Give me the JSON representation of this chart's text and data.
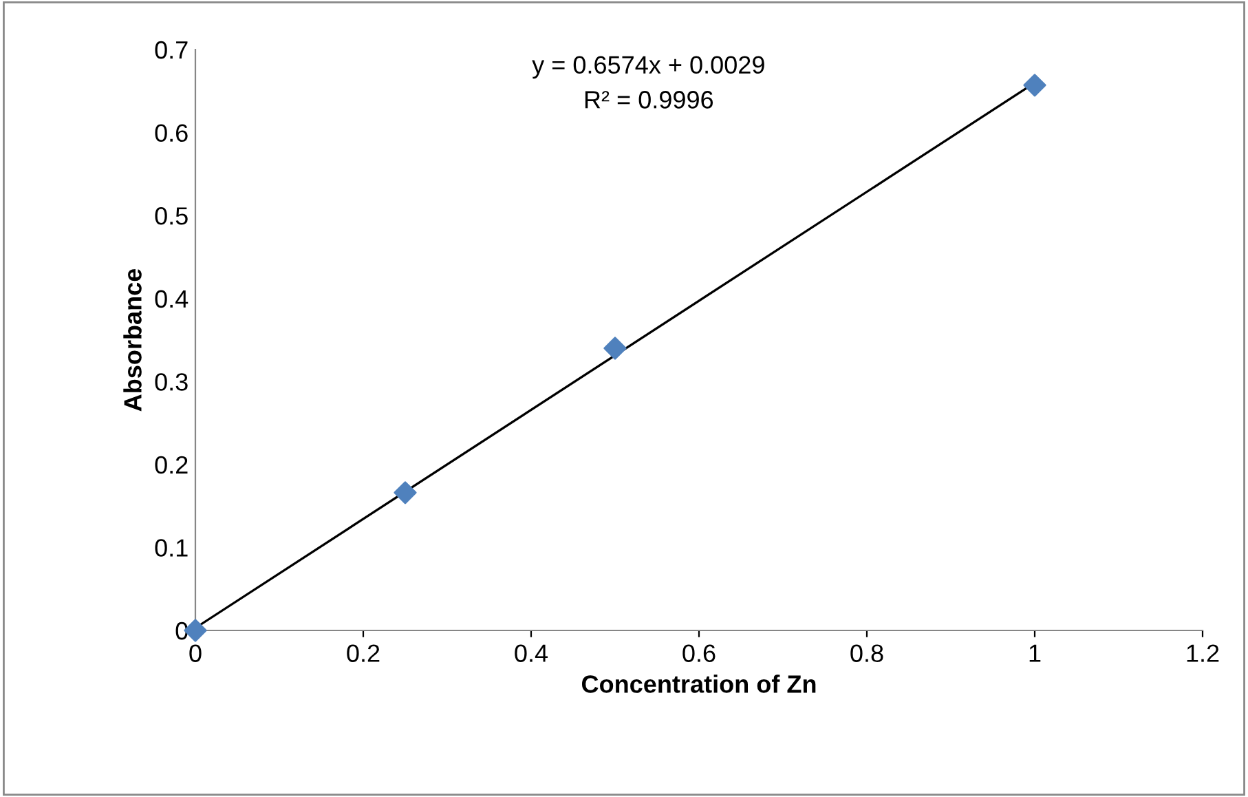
{
  "chart_data": {
    "type": "scatter",
    "xlabel": "Concentration of Zn",
    "ylabel": "Absorbance",
    "series": [
      {
        "color": "#4f81bd",
        "marker": "diamond",
        "x": [
          0,
          0.25,
          0.5,
          1
        ],
        "values": [
          0,
          0.166,
          0.34,
          0.657
        ]
      },
      {
        "type": "line",
        "color": "#000000",
        "marker": "none",
        "line_style": "solid",
        "x": [
          0,
          1
        ],
        "values": [
          0.003,
          0.66
        ]
      }
    ],
    "xlim": [
      0,
      1.2
    ],
    "xticks": [
      0,
      0.2,
      0.4,
      0.6,
      0.8,
      1,
      1.2
    ],
    "ylim": [
      0,
      0.7
    ],
    "yticks": [
      0,
      0.1,
      0.2,
      0.3,
      0.4,
      0.5,
      0.6,
      0.7
    ],
    "grid": false,
    "legend": false,
    "annotations": [
      "y = 0.6574x + 0.0029",
      "R² = 0.9996"
    ]
  }
}
